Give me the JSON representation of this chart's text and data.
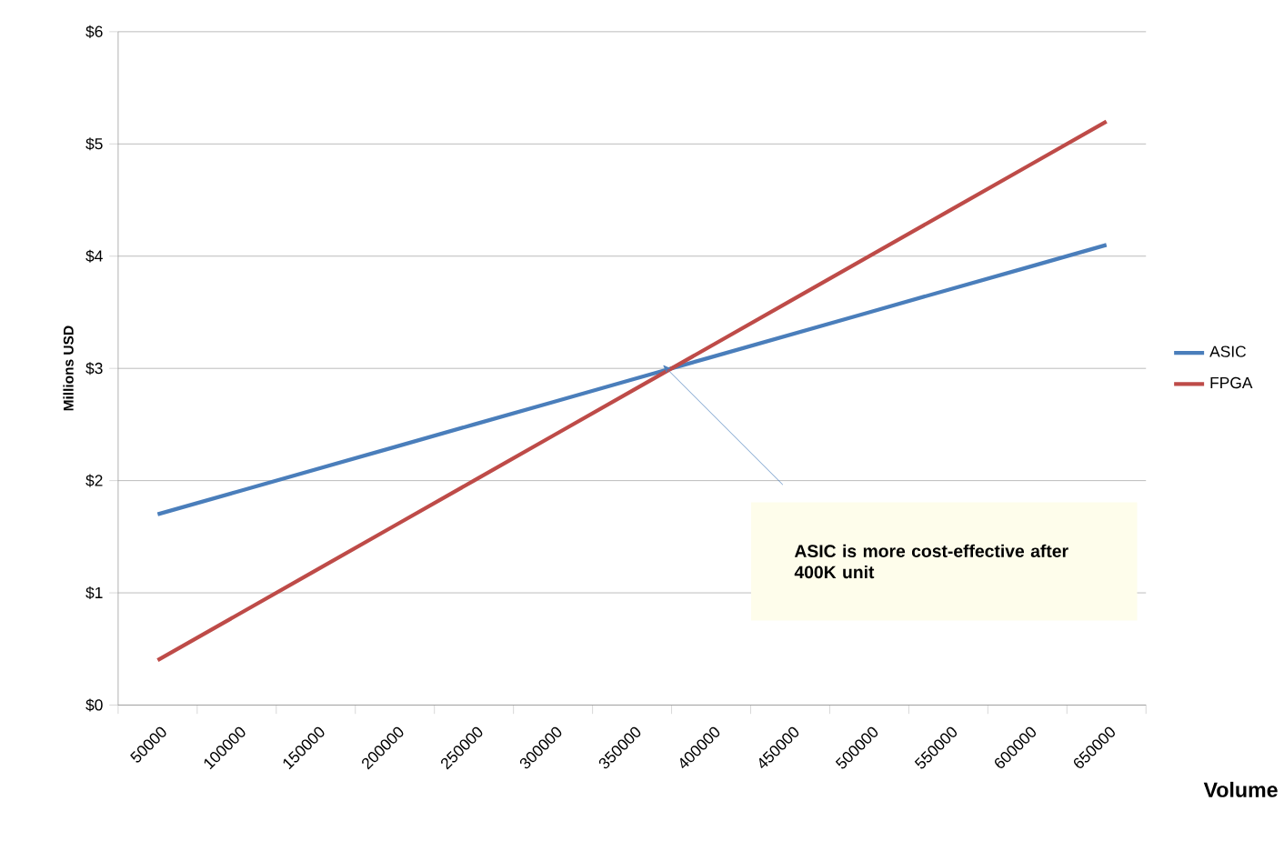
{
  "chart_data": {
    "type": "line",
    "xlabel": "Volume",
    "ylabel": "Millions  USD",
    "categories": [
      "50000",
      "100000",
      "150000",
      "200000",
      "250000",
      "300000",
      "350000",
      "400000",
      "450000",
      "500000",
      "550000",
      "600000",
      "650000"
    ],
    "series": [
      {
        "name": "ASIC",
        "color": "#4a7ebb",
        "values": [
          1.7,
          1.9,
          2.1,
          2.3,
          2.5,
          2.7,
          2.9,
          3.1,
          3.3,
          3.5,
          3.7,
          3.9,
          4.1
        ]
      },
      {
        "name": "FPGA",
        "color": "#be4b48",
        "values": [
          0.4,
          0.8,
          1.2,
          1.6,
          2.0,
          2.4,
          2.8,
          3.2,
          3.6,
          4.0,
          4.4,
          4.8,
          5.2
        ]
      }
    ],
    "ylim": [
      0,
      6
    ],
    "yticks": [
      {
        "value": 0,
        "label": "$0"
      },
      {
        "value": 1,
        "label": "$1"
      },
      {
        "value": 2,
        "label": "$2"
      },
      {
        "value": 3,
        "label": "$3"
      },
      {
        "value": 4,
        "label": "$4"
      },
      {
        "value": 5,
        "label": "$5"
      },
      {
        "value": 6,
        "label": "$6"
      }
    ],
    "grid": "y",
    "legend": "right",
    "marker": "none",
    "line_style": "solid",
    "annotations": [
      "ASIC is more cost-effective after 400K unit"
    ]
  }
}
